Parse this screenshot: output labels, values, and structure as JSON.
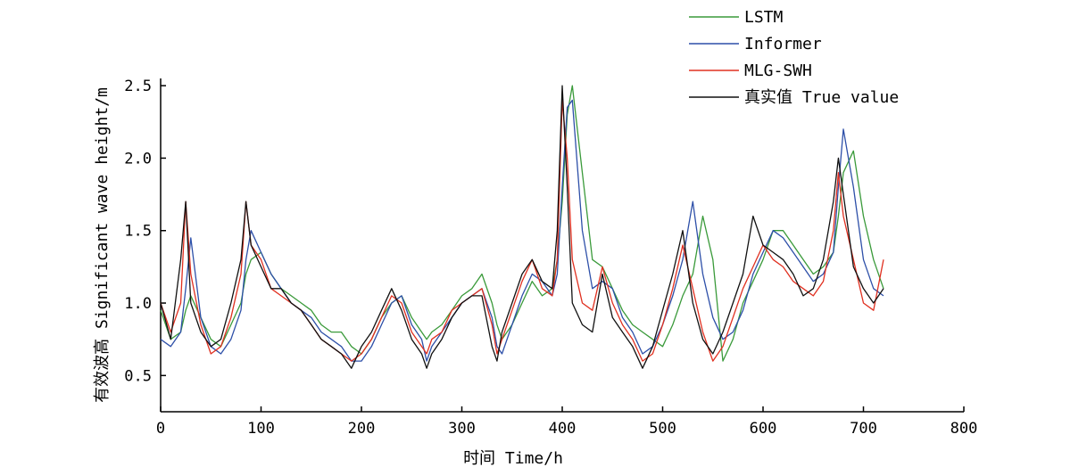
{
  "chart_data": {
    "type": "line",
    "xlabel": "时间 Time/h",
    "ylabel": "有效波高 Significant wave height/m",
    "xlim": [
      0,
      800
    ],
    "ylim": [
      0.25,
      2.55
    ],
    "xticks": [
      0,
      100,
      200,
      300,
      400,
      500,
      600,
      700,
      800
    ],
    "yticks": [
      0.5,
      1.0,
      1.5,
      2.0,
      2.5
    ],
    "xtick_labels": [
      "0",
      "100",
      "200",
      "300",
      "400",
      "500",
      "600",
      "700",
      "800"
    ],
    "ytick_labels": [
      "0.5",
      "1.0",
      "1.5",
      "2.0",
      "2.5"
    ],
    "grid": false,
    "legend_position": "top-right",
    "x": [
      0,
      10,
      20,
      25,
      30,
      40,
      50,
      60,
      70,
      80,
      85,
      90,
      100,
      110,
      120,
      130,
      140,
      150,
      160,
      170,
      180,
      190,
      200,
      210,
      220,
      230,
      240,
      250,
      260,
      265,
      270,
      280,
      290,
      300,
      310,
      320,
      330,
      335,
      340,
      350,
      360,
      370,
      380,
      390,
      395,
      400,
      405,
      410,
      420,
      430,
      440,
      450,
      460,
      470,
      480,
      490,
      500,
      510,
      520,
      530,
      540,
      550,
      560,
      570,
      580,
      590,
      600,
      610,
      620,
      630,
      640,
      650,
      660,
      670,
      675,
      680,
      690,
      700,
      710,
      720
    ],
    "series": [
      {
        "name": "LSTM",
        "color": "#3a9a3a",
        "values": [
          0.95,
          0.75,
          0.8,
          0.95,
          1.05,
          0.9,
          0.75,
          0.7,
          0.85,
          1.0,
          1.2,
          1.3,
          1.35,
          1.2,
          1.1,
          1.05,
          1.0,
          0.95,
          0.85,
          0.8,
          0.8,
          0.7,
          0.65,
          0.75,
          0.9,
          1.0,
          1.05,
          0.9,
          0.8,
          0.75,
          0.8,
          0.85,
          0.95,
          1.05,
          1.1,
          1.2,
          1.0,
          0.85,
          0.75,
          0.85,
          1.0,
          1.15,
          1.05,
          1.1,
          1.3,
          1.7,
          2.3,
          2.5,
          1.9,
          1.3,
          1.25,
          1.1,
          0.95,
          0.85,
          0.8,
          0.75,
          0.7,
          0.85,
          1.05,
          1.2,
          1.6,
          1.3,
          0.6,
          0.75,
          1.0,
          1.15,
          1.3,
          1.5,
          1.5,
          1.4,
          1.3,
          1.2,
          1.25,
          1.35,
          1.6,
          1.9,
          2.05,
          1.6,
          1.3,
          1.1
        ]
      },
      {
        "name": "Informer",
        "color": "#2d4fa8",
        "values": [
          0.75,
          0.7,
          0.8,
          1.1,
          1.45,
          0.9,
          0.7,
          0.65,
          0.75,
          0.95,
          1.3,
          1.5,
          1.35,
          1.2,
          1.1,
          1.0,
          0.95,
          0.9,
          0.8,
          0.75,
          0.7,
          0.6,
          0.6,
          0.7,
          0.85,
          1.0,
          1.05,
          0.85,
          0.75,
          0.6,
          0.7,
          0.8,
          0.9,
          1.0,
          1.05,
          1.1,
          0.9,
          0.7,
          0.65,
          0.85,
          1.05,
          1.2,
          1.15,
          1.05,
          1.2,
          1.8,
          2.35,
          2.4,
          1.5,
          1.1,
          1.15,
          1.1,
          0.9,
          0.8,
          0.65,
          0.7,
          0.85,
          1.05,
          1.3,
          1.7,
          1.2,
          0.9,
          0.75,
          0.8,
          0.95,
          1.2,
          1.35,
          1.5,
          1.45,
          1.35,
          1.25,
          1.15,
          1.2,
          1.35,
          1.8,
          2.2,
          1.8,
          1.3,
          1.1,
          1.05
        ]
      },
      {
        "name": "MLG-SWH",
        "color": "#e03020",
        "values": [
          1.0,
          0.8,
          1.0,
          1.7,
          1.2,
          0.85,
          0.65,
          0.7,
          0.9,
          1.2,
          1.7,
          1.4,
          1.3,
          1.1,
          1.05,
          1.0,
          0.95,
          0.85,
          0.75,
          0.7,
          0.65,
          0.6,
          0.65,
          0.75,
          0.9,
          1.05,
          1.0,
          0.8,
          0.7,
          0.65,
          0.75,
          0.8,
          0.95,
          1.0,
          1.05,
          1.1,
          0.85,
          0.65,
          0.75,
          0.95,
          1.15,
          1.3,
          1.1,
          1.05,
          1.3,
          2.4,
          2.0,
          1.3,
          1.0,
          0.95,
          1.25,
          1.0,
          0.85,
          0.75,
          0.6,
          0.65,
          0.85,
          1.1,
          1.4,
          1.1,
          0.8,
          0.6,
          0.7,
          0.9,
          1.1,
          1.25,
          1.4,
          1.3,
          1.25,
          1.15,
          1.1,
          1.05,
          1.15,
          1.5,
          1.9,
          1.6,
          1.3,
          1.0,
          0.95,
          1.3
        ]
      },
      {
        "name": "真实值 True value",
        "color": "#111111",
        "values": [
          1.0,
          0.75,
          1.3,
          1.7,
          1.0,
          0.8,
          0.7,
          0.75,
          1.0,
          1.3,
          1.7,
          1.4,
          1.25,
          1.1,
          1.1,
          1.0,
          0.95,
          0.85,
          0.75,
          0.7,
          0.65,
          0.55,
          0.7,
          0.8,
          0.95,
          1.1,
          0.95,
          0.75,
          0.65,
          0.55,
          0.65,
          0.75,
          0.9,
          1.0,
          1.05,
          1.05,
          0.7,
          0.6,
          0.8,
          1.0,
          1.2,
          1.3,
          1.15,
          1.1,
          1.5,
          2.5,
          1.8,
          1.0,
          0.85,
          0.8,
          1.2,
          0.9,
          0.8,
          0.7,
          0.55,
          0.7,
          0.95,
          1.2,
          1.5,
          1.0,
          0.75,
          0.65,
          0.8,
          1.0,
          1.2,
          1.6,
          1.4,
          1.35,
          1.3,
          1.2,
          1.05,
          1.1,
          1.3,
          1.7,
          2.0,
          1.75,
          1.25,
          1.1,
          1.0,
          1.1
        ]
      }
    ]
  }
}
